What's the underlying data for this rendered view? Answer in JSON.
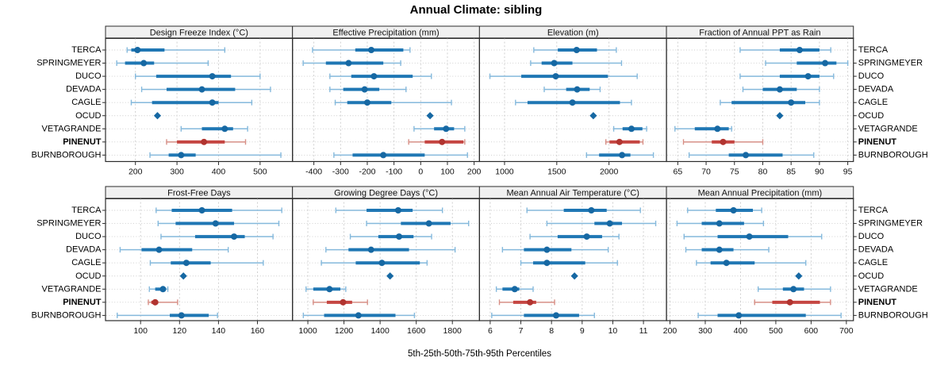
{
  "title": "Annual Climate: sibling",
  "caption": "5th-25th-50th-75th-95th Percentiles",
  "colors": {
    "blue_box": "#1f77b4",
    "blue_dot": "#1668a3",
    "blue_whisker": "#85b9dc",
    "red_box": "#c54642",
    "red_dot": "#b13430",
    "red_whisker": "#d78f86",
    "strip_bg": "#f0f0f0",
    "frame": "#2b2b2b",
    "grid": "#cbcbcb",
    "text": "#111111"
  },
  "chart_data": {
    "type": "percentile-dotplot",
    "layout": "2 rows x 4 columns, site labels on both left and right sides",
    "percentile_labels": [
      "5th",
      "25th",
      "50th",
      "75th",
      "95th"
    ],
    "sites": [
      "TERCA",
      "SPRINGMEYER",
      "DUCO",
      "DEVADA",
      "CAGLE",
      "OCUD",
      "VETAGRANDE",
      "PINENUT",
      "BURNBOROUGH"
    ],
    "highlight_site": "PINENUT",
    "single_value_sites": [
      "OCUD"
    ],
    "panels": [
      {
        "title": "Design Freeze Index (°C)",
        "xlim": [
          128,
          578
        ],
        "ticks": [
          200,
          300,
          400,
          500
        ],
        "series": [
          {
            "site": "TERCA",
            "values": [
              180,
              190,
              205,
              270,
              415
            ]
          },
          {
            "site": "SPRINGMEYER",
            "values": [
              155,
              175,
              220,
              245,
              375
            ]
          },
          {
            "site": "DUCO",
            "values": [
              200,
              250,
              385,
              430,
              500
            ]
          },
          {
            "site": "DEVADA",
            "values": [
              215,
              275,
              360,
              440,
              525
            ]
          },
          {
            "site": "CAGLE",
            "values": [
              190,
              240,
              385,
              400,
              480
            ]
          },
          {
            "site": "OCUD",
            "values": [
              253,
              253,
              253,
              253,
              253
            ]
          },
          {
            "site": "VETAGRANDE",
            "values": [
              310,
              360,
              415,
              435,
              470
            ]
          },
          {
            "site": "PINENUT",
            "values": [
              275,
              300,
              365,
              415,
              465
            ]
          },
          {
            "site": "BURNBOROUGH",
            "values": [
              235,
              280,
              310,
              345,
              550
            ]
          }
        ]
      },
      {
        "title": "Effective Precipitation (mm)",
        "xlim": [
          -480,
          220
        ],
        "ticks": [
          -400,
          -300,
          -200,
          -100,
          0,
          100,
          200
        ],
        "series": [
          {
            "site": "TERCA",
            "values": [
              -405,
              -245,
              -185,
              -65,
              -40
            ]
          },
          {
            "site": "SPRINGMEYER",
            "values": [
              -440,
              -355,
              -270,
              -140,
              -75
            ]
          },
          {
            "site": "DUCO",
            "values": [
              -340,
              -260,
              -175,
              -30,
              40
            ]
          },
          {
            "site": "DEVADA",
            "values": [
              -340,
              -290,
              -210,
              -155,
              -55
            ]
          },
          {
            "site": "CAGLE",
            "values": [
              -320,
              -275,
              -200,
              -110,
              115
            ]
          },
          {
            "site": "OCUD",
            "values": [
              35,
              35,
              35,
              35,
              35
            ]
          },
          {
            "site": "VETAGRANDE",
            "values": [
              -25,
              50,
              95,
              125,
              165
            ]
          },
          {
            "site": "PINENUT",
            "values": [
              -45,
              15,
              80,
              160,
              165
            ]
          },
          {
            "site": "BURNBOROUGH",
            "values": [
              -325,
              -255,
              -140,
              15,
              175
            ]
          }
        ]
      },
      {
        "title": "Elevation (m)",
        "xlim": [
          760,
          2550
        ],
        "ticks": [
          1000,
          1500,
          2000
        ],
        "series": [
          {
            "site": "TERCA",
            "values": [
              1280,
              1510,
              1690,
              1885,
              2070
            ]
          },
          {
            "site": "SPRINGMEYER",
            "values": [
              1250,
              1355,
              1475,
              1650,
              2120
            ]
          },
          {
            "site": "DUCO",
            "values": [
              860,
              1160,
              1490,
              1990,
              2270
            ]
          },
          {
            "site": "DEVADA",
            "values": [
              1380,
              1590,
              1695,
              1815,
              1915
            ]
          },
          {
            "site": "CAGLE",
            "values": [
              1105,
              1220,
              1650,
              2105,
              2215
            ]
          },
          {
            "site": "OCUD",
            "values": [
              1850,
              1850,
              1850,
              1850,
              1850
            ]
          },
          {
            "site": "VETAGRANDE",
            "values": [
              2045,
              2130,
              2215,
              2320,
              2360
            ]
          },
          {
            "site": "PINENUT",
            "values": [
              1970,
              2005,
              2100,
              2295,
              2325
            ]
          },
          {
            "site": "BURNBOROUGH",
            "values": [
              1785,
              1905,
              2125,
              2205,
              2425
            ]
          }
        ]
      },
      {
        "title": "Fraction of Annual PPT as Rain",
        "xlim": [
          63,
          96
        ],
        "ticks": [
          65,
          70,
          75,
          80,
          85,
          90,
          95
        ],
        "series": [
          {
            "site": "TERCA",
            "values": [
              76,
              83,
              86.5,
              90,
              92
            ]
          },
          {
            "site": "SPRINGMEYER",
            "values": [
              80.5,
              86,
              91,
              93,
              95
            ]
          },
          {
            "site": "DUCO",
            "values": [
              76,
              83,
              88,
              90,
              92.5
            ]
          },
          {
            "site": "DEVADA",
            "values": [
              76.5,
              80,
              83,
              86,
              90
            ]
          },
          {
            "site": "CAGLE",
            "values": [
              72.5,
              74.5,
              85,
              87.5,
              90
            ]
          },
          {
            "site": "OCUD",
            "values": [
              83,
              83,
              83,
              83,
              83
            ]
          },
          {
            "site": "VETAGRANDE",
            "values": [
              64.5,
              68,
              72,
              74,
              74.5
            ]
          },
          {
            "site": "PINENUT",
            "values": [
              66,
              71,
              73,
              75,
              80
            ]
          },
          {
            "site": "BURNBOROUGH",
            "values": [
              67,
              74,
              77,
              83.5,
              89
            ]
          }
        ]
      },
      {
        "title": "Frost-Free Days",
        "xlim": [
          82,
          178
        ],
        "ticks": [
          100,
          120,
          140,
          160
        ],
        "series": [
          {
            "site": "TERCA",
            "values": [
              108,
              116,
              131.5,
              147,
              172.5
            ]
          },
          {
            "site": "SPRINGMEYER",
            "values": [
              109,
              118,
              138.5,
              148,
              171
            ]
          },
          {
            "site": "DUCO",
            "values": [
              110.5,
              128,
              148,
              153.5,
              168
            ]
          },
          {
            "site": "DEVADA",
            "values": [
              89.5,
              100.5,
              109.5,
              126.5,
              145
            ]
          },
          {
            "site": "CAGLE",
            "values": [
              105,
              115.5,
              123.5,
              136,
              163
            ]
          },
          {
            "site": "OCUD",
            "values": [
              122,
              122,
              122,
              122,
              122
            ]
          },
          {
            "site": "VETAGRANDE",
            "values": [
              104.5,
              107.5,
              111.5,
              113,
              114
            ]
          },
          {
            "site": "PINENUT",
            "values": [
              104,
              105.5,
              107.5,
              109,
              119
            ]
          },
          {
            "site": "BURNBOROUGH",
            "values": [
              88,
              115,
              121,
              135,
              139.5
            ]
          }
        ]
      },
      {
        "title": "Growing Degree Days (°C)",
        "xlim": [
          915,
          1950
        ],
        "ticks": [
          1000,
          1200,
          1400,
          1600,
          1800
        ],
        "series": [
          {
            "site": "TERCA",
            "values": [
              1155,
              1325,
              1500,
              1580,
              1745
            ]
          },
          {
            "site": "SPRINGMEYER",
            "values": [
              1325,
              1515,
              1670,
              1790,
              1890
            ]
          },
          {
            "site": "DUCO",
            "values": [
              1235,
              1390,
              1505,
              1585,
              1685
            ]
          },
          {
            "site": "DEVADA",
            "values": [
              1100,
              1225,
              1350,
              1560,
              1815
            ]
          },
          {
            "site": "CAGLE",
            "values": [
              1075,
              1265,
              1410,
              1620,
              1660
            ]
          },
          {
            "site": "OCUD",
            "values": [
              1455,
              1455,
              1455,
              1455,
              1455
            ]
          },
          {
            "site": "VETAGRANDE",
            "values": [
              990,
              1030,
              1120,
              1180,
              1210
            ]
          },
          {
            "site": "PINENUT",
            "values": [
              1030,
              1105,
              1195,
              1245,
              1330
            ]
          },
          {
            "site": "BURNBOROUGH",
            "values": [
              975,
              1090,
              1280,
              1485,
              1590
            ]
          }
        ]
      },
      {
        "title": "Mean Annual Air Temperature (°C)",
        "xlim": [
          5.65,
          11.75
        ],
        "ticks": [
          6,
          7,
          8,
          9,
          10,
          11
        ],
        "series": [
          {
            "site": "TERCA",
            "values": [
              7.2,
              8.4,
              9.3,
              9.8,
              10.9
            ]
          },
          {
            "site": "SPRINGMEYER",
            "values": [
              7.85,
              9.4,
              9.9,
              10.3,
              11.4
            ]
          },
          {
            "site": "DUCO",
            "values": [
              7.3,
              8.2,
              9.15,
              9.65,
              10.2
            ]
          },
          {
            "site": "DEVADA",
            "values": [
              6.4,
              7.1,
              7.85,
              8.65,
              9.85
            ]
          },
          {
            "site": "CAGLE",
            "values": [
              7,
              7.4,
              7.85,
              9.1,
              10.15
            ]
          },
          {
            "site": "OCUD",
            "values": [
              8.75,
              8.75,
              8.75,
              8.75,
              8.75
            ]
          },
          {
            "site": "VETAGRANDE",
            "values": [
              6.2,
              6.4,
              6.8,
              6.95,
              7.4
            ]
          },
          {
            "site": "PINENUT",
            "values": [
              6.3,
              6.75,
              7.3,
              7.5,
              8.1
            ]
          },
          {
            "site": "BURNBOROUGH",
            "values": [
              6.05,
              7.1,
              8.15,
              8.9,
              9.4
            ]
          }
        ]
      },
      {
        "title": "Mean Annual Precipitation (mm)",
        "xlim": [
          190,
          720
        ],
        "ticks": [
          200,
          300,
          400,
          500,
          600,
          700
        ],
        "series": [
          {
            "site": "TERCA",
            "values": [
              250,
              330,
              380,
              435,
              460
            ]
          },
          {
            "site": "SPRINGMEYER",
            "values": [
              220,
              290,
              340,
              410,
              465
            ]
          },
          {
            "site": "DUCO",
            "values": [
              240,
              335,
              425,
              535,
              630
            ]
          },
          {
            "site": "DEVADA",
            "values": [
              245,
              290,
              340,
              380,
              480
            ]
          },
          {
            "site": "CAGLE",
            "values": [
              275,
              315,
              360,
              440,
              585
            ]
          },
          {
            "site": "OCUD",
            "values": [
              565,
              565,
              565,
              565,
              565
            ]
          },
          {
            "site": "VETAGRANDE",
            "values": [
              450,
              520,
              550,
              580,
              655
            ]
          },
          {
            "site": "PINENUT",
            "values": [
              440,
              490,
              540,
              625,
              655
            ]
          },
          {
            "site": "BURNBOROUGH",
            "values": [
              280,
              335,
              395,
              585,
              685
            ]
          }
        ]
      }
    ]
  }
}
